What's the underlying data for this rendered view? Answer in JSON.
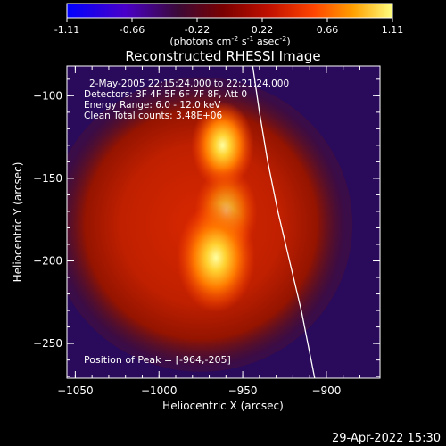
{
  "chart_data": {
    "type": "heatmap",
    "title": "Reconstructed RHESSI Image",
    "xlabel": "Heliocentric X (arcsec)",
    "ylabel": "Heliocentric Y (arcsec)",
    "xlim": [
      -1055,
      -868
    ],
    "ylim": [
      -271,
      -82
    ],
    "x_ticks": [
      -1050,
      -1000,
      -950,
      -900
    ],
    "y_ticks": [
      -100,
      -150,
      -200,
      -250
    ],
    "colorbar": {
      "ticks": [
        "-1.11",
        "-0.66",
        "-0.22",
        "0.22",
        "0.66",
        "1.11"
      ],
      "range": [
        -1.11,
        1.11
      ],
      "unit_main": "(photons cm",
      "unit_exp1": "-2",
      "unit_mid1": " s",
      "unit_exp2": "-1",
      "unit_mid2": " asec",
      "unit_exp3": "-2",
      "unit_close": ")"
    },
    "annotations": [
      "2-May-2005 22:15:24.000 to 22:21:24.000",
      "Detectors: 3F 4F 5F 6F 7F 8F, Att 0",
      "Energy Range: 6.0 - 12.0 keV",
      "Clean    Total counts: 3.48E+06"
    ],
    "peak_label": "Position of Peak = [-964,-205]",
    "peak": [
      -964,
      -205
    ],
    "sources": [
      {
        "x": -962,
        "y": -130,
        "intensity": 1.0,
        "sigma": 8
      },
      {
        "x": -960,
        "y": -170,
        "intensity": 0.7,
        "sigma": 8
      },
      {
        "x": -966,
        "y": -198,
        "intensity": 1.05,
        "sigma": 10
      },
      {
        "x": -1000,
        "y": -175,
        "intensity": 0.5,
        "sigma": 48
      }
    ],
    "limb": [
      [
        -944,
        -82
      ],
      [
        -940,
        -110
      ],
      [
        -935,
        -140
      ],
      [
        -929,
        -170
      ],
      [
        -922,
        -200
      ],
      [
        -915,
        -230
      ],
      [
        -907,
        -271
      ]
    ]
  },
  "footer": {
    "date": "29-Apr-2022 15:30"
  }
}
